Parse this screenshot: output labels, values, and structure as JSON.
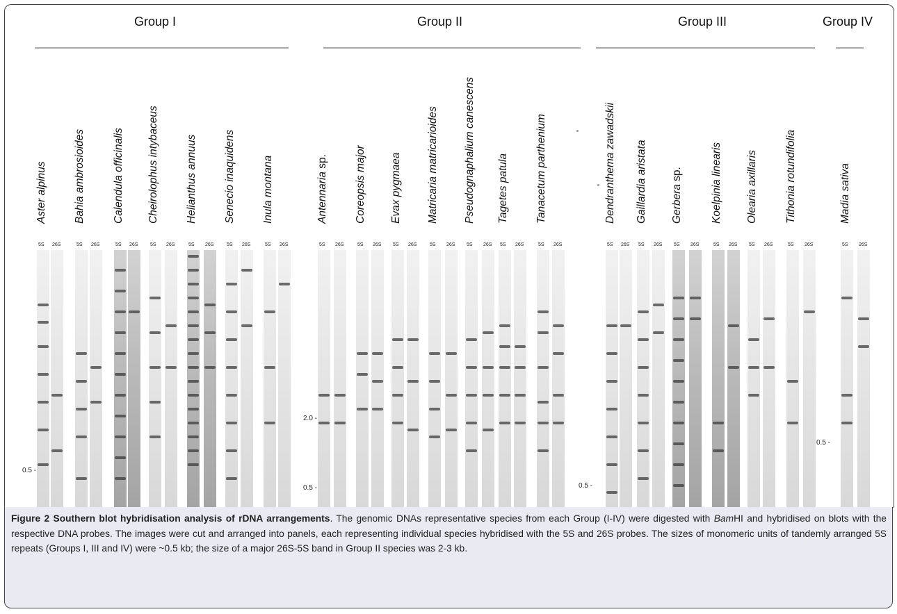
{
  "groups": [
    "Group I",
    "Group II",
    "Group III",
    "Group IV"
  ],
  "lane_labels": [
    "5S",
    "26S"
  ],
  "size_markers": [
    "0.5 -",
    "2.0 -",
    "0.5 -",
    "0.5 -",
    "0.5 -"
  ],
  "species": {
    "group_1": [
      "Aster alpinus",
      "Bahia ambrosioides",
      "Calendula officinalis",
      "Cheirolophus intybaceus",
      "Helianthus annuus",
      "Senecio inaquidens",
      "Inula montana"
    ],
    "group_2": [
      "Antennaria",
      "Coreopsis major",
      "Evax pygmaea",
      "Matricaria matricarioides",
      "Pseudognaphalium canescens",
      "Tagetes patula",
      "Tanacetum parthenium"
    ],
    "group_2_suffix": " sp.",
    "group_3": [
      "Dendranthema zawadskii",
      "Gaillardia aristata",
      "Gerbera",
      "Koelpinia linearis",
      "Olearia axillaris",
      "Tithonia rotundifolia"
    ],
    "group_3_suffix": " sp.",
    "group_4": [
      "Madia sativa"
    ]
  },
  "caption": {
    "title": "Figure 2 Southern blot hybridisation analysis of rDNA arrangements",
    "t1": ". The genomic DNAs representative species from each Group (I-IV) were digested with ",
    "enzyme": "Bam",
    "t2": "HI and hybridised on blots with the respective DNA probes. The images were cut and arranged into panels, each representing individual species hybridised with the 5S and 26S probes. The sizes of monomeric units of tandemly arranged 5S repeats (Groups I, III and IV) were ~0.5 kb; the size of a major 26S-5S band in Group II species was 2-3 kb."
  }
}
